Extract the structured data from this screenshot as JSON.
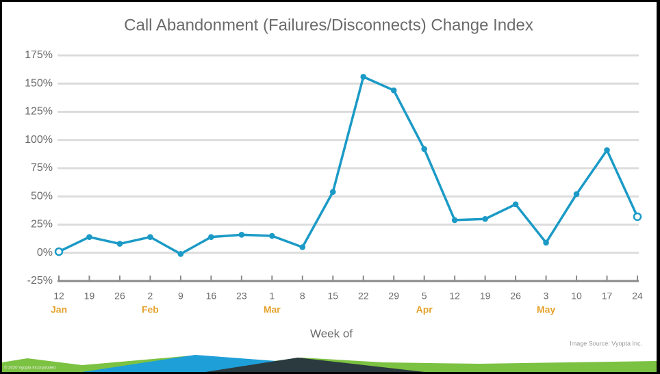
{
  "chart_data": {
    "type": "line",
    "title": "Call Abandonment (Failures/Disconnects) Change Index",
    "categories": [
      "12",
      "19",
      "26",
      "2",
      "9",
      "16",
      "23",
      "1",
      "8",
      "15",
      "22",
      "29",
      "5",
      "12",
      "19",
      "26",
      "3",
      "10",
      "17",
      "24"
    ],
    "months": [
      "Jan",
      null,
      null,
      "Feb",
      null,
      null,
      null,
      "Mar",
      null,
      null,
      null,
      null,
      "Apr",
      null,
      null,
      null,
      "May",
      null,
      null,
      null
    ],
    "values": [
      1,
      14,
      8,
      14,
      -1,
      14,
      16,
      15,
      5,
      54,
      156,
      144,
      92,
      29,
      30,
      43,
      9,
      52,
      91,
      32
    ],
    "color": "#1b9ac6",
    "month_color": "#e4a22c",
    "ylim": [
      -25,
      175
    ],
    "yticks": [
      {
        "value": -25,
        "label": "-25%"
      },
      {
        "value": 0,
        "label": "0%"
      },
      {
        "value": 25,
        "label": "25%"
      },
      {
        "value": 50,
        "label": "50%"
      },
      {
        "value": 75,
        "label": "75%"
      },
      {
        "value": 100,
        "label": "100%"
      },
      {
        "value": 125,
        "label": "125%"
      },
      {
        "value": 150,
        "label": "150%"
      },
      {
        "value": 175,
        "label": "175%"
      }
    ],
    "grid": true,
    "x_label": "Week of",
    "source": "Image Source: Vyopta Inc.",
    "copyright": "© 2020 Vyopta Incorporated"
  }
}
